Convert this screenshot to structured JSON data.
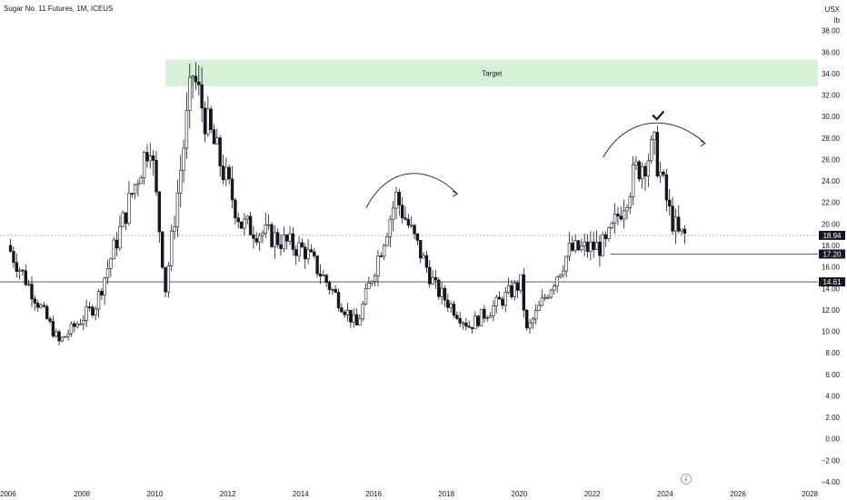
{
  "header": {
    "title": "Sugar No. 11 Futures, 1M, ICEUS",
    "currency": "USX",
    "unit": "lb"
  },
  "colors": {
    "up": "#ffffff",
    "up_border": "#131722",
    "down": "#131722",
    "zone": "#d6f0d6",
    "line": "#131722",
    "dashed": "#9598a1"
  },
  "chart_data": {
    "type": "candlestick",
    "x_ticks": [
      "2006",
      "2008",
      "2010",
      "2012",
      "2014",
      "2016",
      "2018",
      "2020",
      "2022",
      "2024",
      "2026",
      "2028"
    ],
    "y_ticks": [
      "38.00",
      "36.00",
      "34.00",
      "32.00",
      "30.00",
      "28.00",
      "26.00",
      "24.00",
      "22.00",
      "20.00",
      "18.00",
      "16.00",
      "14.00",
      "12.00",
      "10.00",
      "8.00",
      "6.00",
      "4.00",
      "2.00",
      "0.00",
      "−2.00",
      "−4.00"
    ],
    "ylim": [
      -4,
      40
    ],
    "xlim": [
      2006.0,
      2028.0
    ],
    "zone": {
      "label": "Target",
      "x_start": 2010.3,
      "x_end": 2028.0,
      "y_low": 32.8,
      "y_high": 35.3
    },
    "horizontal_lines": [
      {
        "value": 14.61,
        "label": "14.61",
        "style": "solid"
      },
      {
        "value": 18.94,
        "label": "18.94",
        "style": "dotted"
      },
      {
        "value": 17.2,
        "label": "17.20",
        "style": "solid",
        "x_start": 2022.5
      }
    ],
    "annotations": [
      {
        "type": "arc-arrow",
        "x_start": 2015.8,
        "x_end": 2018.3,
        "y_start": 21.5,
        "y_peak": 24.6,
        "y_end": 22.8
      },
      {
        "type": "arc-arrow",
        "x_start": 2022.3,
        "x_end": 2025.1,
        "y_start": 26.2,
        "y_peak": 29.3,
        "y_end": 27.5
      },
      {
        "type": "checkmark",
        "x": 2023.8,
        "y": 30.0
      }
    ],
    "key_points": [
      {
        "date": "2006-01",
        "value": 18.0
      },
      {
        "date": "2007-06",
        "value": 9.0
      },
      {
        "date": "2008-06",
        "value": 12.5
      },
      {
        "date": "2009-12",
        "value": 28.0
      },
      {
        "date": "2010-05",
        "value": 14.0
      },
      {
        "date": "2011-02",
        "value": 34.0
      },
      {
        "date": "2011-07",
        "value": 29.0
      },
      {
        "date": "2012-06",
        "value": 20.0
      },
      {
        "date": "2014-03",
        "value": 17.5
      },
      {
        "date": "2015-08",
        "value": 10.5
      },
      {
        "date": "2016-09",
        "value": 22.5
      },
      {
        "date": "2017-10",
        "value": 14.0
      },
      {
        "date": "2018-09",
        "value": 10.5
      },
      {
        "date": "2019-06",
        "value": 12.5
      },
      {
        "date": "2020-02",
        "value": 14.5
      },
      {
        "date": "2020-04",
        "value": 10.0
      },
      {
        "date": "2021-06",
        "value": 17.5
      },
      {
        "date": "2022-06",
        "value": 18.0
      },
      {
        "date": "2023-04",
        "value": 25.0
      },
      {
        "date": "2023-10",
        "value": 27.0
      },
      {
        "date": "2024-03",
        "value": 21.0
      },
      {
        "date": "2024-06",
        "value": 18.94
      }
    ]
  }
}
